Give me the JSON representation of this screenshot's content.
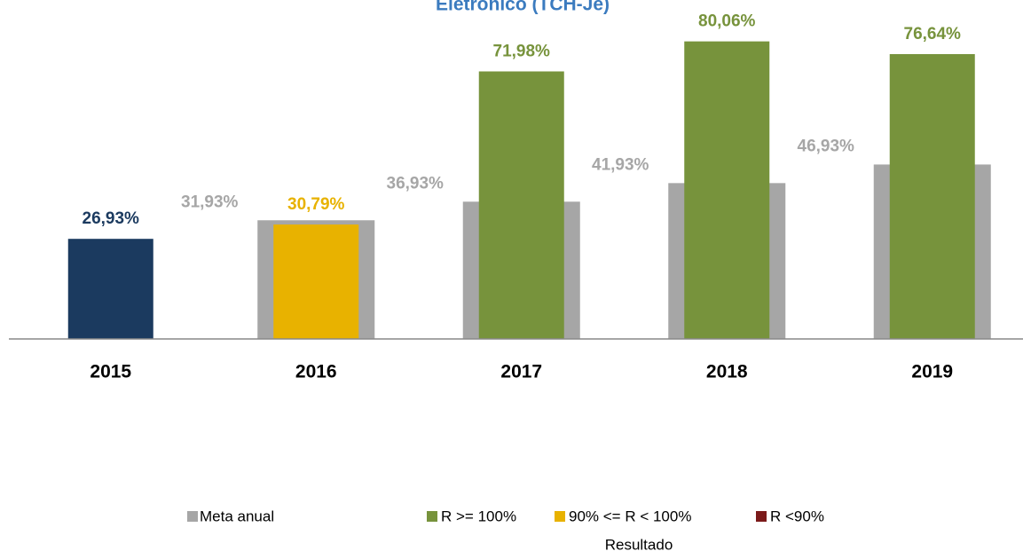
{
  "chart_data": {
    "type": "bar",
    "title": "Eletrônico (TCH-Je)",
    "categories": [
      "2015",
      "2016",
      "2017",
      "2018",
      "2019"
    ],
    "series": [
      {
        "name": "Meta anual",
        "color": "#a6a6a6",
        "values": [
          null,
          31.93,
          36.93,
          41.93,
          46.93
        ],
        "value_labels": [
          null,
          "31,93%",
          "36,93%",
          "41,93%",
          "46,93%"
        ]
      },
      {
        "name": "Resultado",
        "colors": [
          "#1b3a5f",
          "#e8b200",
          "#77933c",
          "#77933c",
          "#77933c"
        ],
        "values": [
          26.93,
          30.79,
          71.98,
          80.06,
          76.64
        ],
        "value_labels": [
          "26,93%",
          "30,79%",
          "71,98%",
          "80,06%",
          "76,64%"
        ]
      }
    ],
    "legend": [
      {
        "label": "R >= 100%",
        "color": "#77933c"
      },
      {
        "label": "90% <= R < 100%",
        "color": "#e8b200"
      },
      {
        "label": "R <90%",
        "color": "#7b1a1a"
      }
    ],
    "ylim": [
      0,
      90
    ]
  }
}
